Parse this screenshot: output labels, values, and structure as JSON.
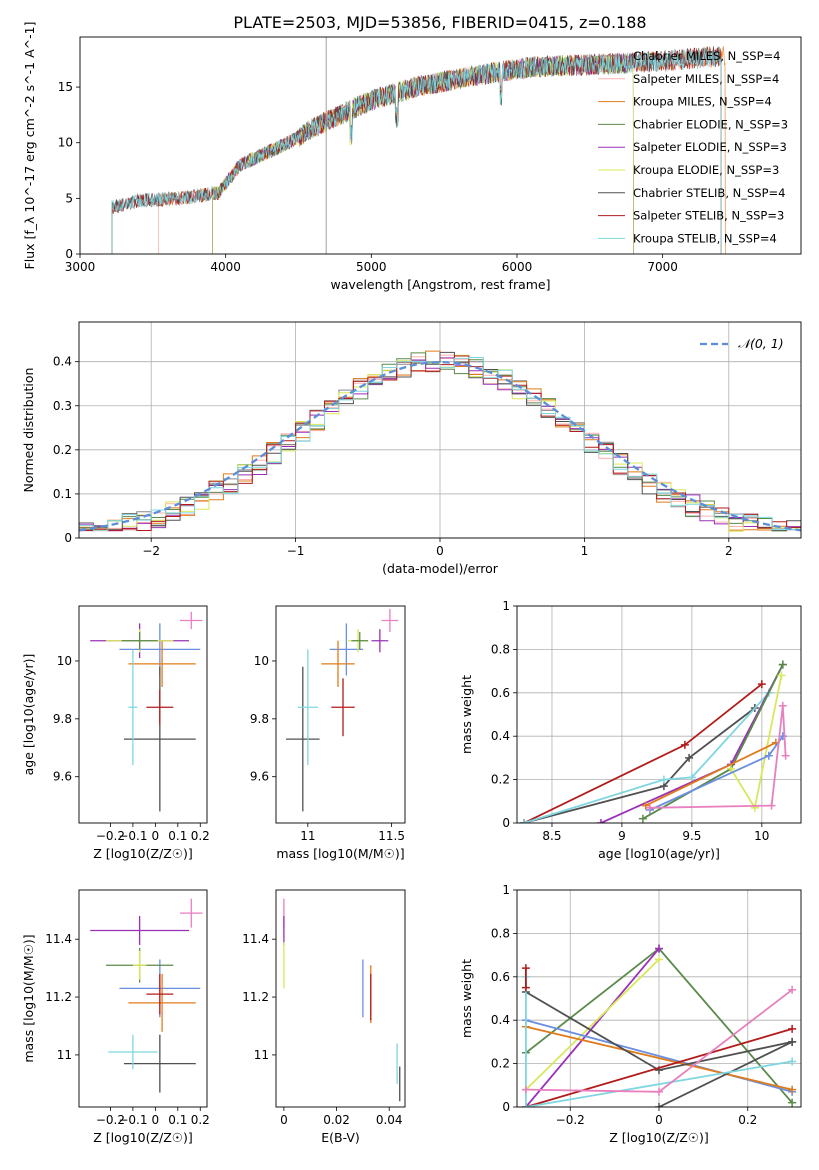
{
  "figure_title": "PLATE=2503, MJD=53856, FIBERID=0415, z=0.188",
  "colors": {
    "chabrier_miles": "#888888",
    "salpeter_miles": "#ffb0b0",
    "kroupa_miles": "#e07b1a",
    "chabrier_elodie": "#5a8a4a",
    "salpeter_elodie": "#9b30b8",
    "kroupa_elodie": "#d8e85a",
    "chabrier_stelib": "#505050",
    "salpeter_stelib": "#b31b1b",
    "kroupa_stelib": "#7fd6e0",
    "normal": "#5b8fd9",
    "pink": "#e87fbf",
    "blue": "#6a8ee0"
  },
  "chart_data": [
    {
      "type": "line",
      "panel": "spectrum",
      "xlabel": "wavelength [Angstrom, rest frame]",
      "ylabel": "Flux [f_λ 10^-17 erg cm^-2 s^-1 A^-1]",
      "xlim": [
        3000,
        7950
      ],
      "ylim": [
        0,
        19.5
      ],
      "xticks": [
        3000,
        4000,
        5000,
        6000,
        7000
      ],
      "yticks": [
        0,
        5,
        10,
        15
      ],
      "legend_placement": "right",
      "series": [
        {
          "name": "Chabrier MILES, N_SSP=4"
        },
        {
          "name": "Salpeter MILES, N_SSP=4"
        },
        {
          "name": "Kroupa MILES, N_SSP=4"
        },
        {
          "name": "Chabrier ELODIE, N_SSP=3"
        },
        {
          "name": "Salpeter ELODIE, N_SSP=3"
        },
        {
          "name": "Kroupa ELODIE, N_SSP=3"
        },
        {
          "name": "Chabrier STELIB, N_SSP=4"
        },
        {
          "name": "Salpeter STELIB, N_SSP=3"
        },
        {
          "name": "Kroupa STELIB, N_SSP=4"
        }
      ],
      "continuum": {
        "x": [
          3220,
          3400,
          3700,
          3950,
          4100,
          4400,
          4700,
          5000,
          5300,
          5700,
          6100,
          6500,
          6800,
          7100,
          7400
        ],
        "y": [
          4.2,
          4.8,
          5.0,
          5.5,
          8.0,
          9.8,
          12.0,
          13.8,
          15.0,
          16.0,
          16.8,
          17.0,
          17.2,
          17.4,
          17.8
        ]
      }
    },
    {
      "type": "line",
      "panel": "residual-histogram",
      "xlabel": "(data-model)/error",
      "ylabel": "Normed distribution",
      "xlim": [
        -2.5,
        2.5
      ],
      "ylim": [
        0,
        0.49
      ],
      "xticks": [
        -2,
        -1,
        0,
        1,
        2
      ],
      "yticks": [
        0.0,
        0.1,
        0.2,
        0.3,
        0.4
      ],
      "legend": "𝒩(0, 1)",
      "legend_placement": "top-right",
      "grid": true
    },
    {
      "type": "scatter",
      "panel": "age-vs-Z",
      "xlabel": "Z [log10(Z/Z☉)]",
      "ylabel": "age  [log10(age/yr)]",
      "xlim": [
        -0.34,
        0.23
      ],
      "ylim": [
        9.44,
        10.19
      ],
      "xticks": [
        -0.2,
        -0.1,
        0.0,
        0.1,
        0.2
      ],
      "yticks": [
        9.6,
        9.8,
        10.0
      ],
      "points": [
        {
          "x": 0.02,
          "y": 10.04,
          "xerr": 0.18,
          "yerr": 0.09,
          "color": "#6a8ee0"
        },
        {
          "x": 0.03,
          "y": 9.99,
          "xerr": 0.15,
          "yerr": 0.08,
          "color": "#e07b1a"
        },
        {
          "x": -0.07,
          "y": 10.07,
          "xerr": 0.22,
          "yerr": 0.06,
          "color": "#9b30b8"
        },
        {
          "x": -0.07,
          "y": 10.07,
          "xerr": 0.15,
          "yerr": 0.04,
          "color": "#d8e85a"
        },
        {
          "x": -0.07,
          "y": 10.07,
          "xerr": 0.08,
          "yerr": 0.03,
          "color": "#5a8a4a"
        },
        {
          "x": 0.02,
          "y": 9.73,
          "xerr": 0.16,
          "yerr": 0.25,
          "color": "#505050"
        },
        {
          "x": 0.02,
          "y": 9.84,
          "xerr": 0.06,
          "yerr": 0.06,
          "color": "#b31b1b"
        },
        {
          "x": -0.1,
          "y": 9.84,
          "xerr": 0.02,
          "yerr": 0.2,
          "color": "#7fd6e0"
        },
        {
          "x": 0.16,
          "y": 10.14,
          "xerr": 0.05,
          "yerr": 0.03,
          "color": "#e87fbf"
        }
      ]
    },
    {
      "type": "scatter",
      "panel": "age-vs-mass",
      "xlabel": "mass [log10(M/M☉)]",
      "ylabel": "",
      "xlim": [
        10.81,
        11.58
      ],
      "ylim": [
        9.44,
        10.19
      ],
      "xticks": [
        11.0,
        11.5
      ],
      "yticks": [
        9.6,
        9.8,
        10.0
      ],
      "points": [
        {
          "x": 11.23,
          "y": 10.04,
          "xerr": 0.1,
          "yerr": 0.09,
          "color": "#6a8ee0"
        },
        {
          "x": 11.18,
          "y": 9.99,
          "xerr": 0.1,
          "yerr": 0.08,
          "color": "#e07b1a"
        },
        {
          "x": 11.43,
          "y": 10.07,
          "xerr": 0.05,
          "yerr": 0.04,
          "color": "#9b30b8"
        },
        {
          "x": 11.3,
          "y": 10.07,
          "xerr": 0.06,
          "yerr": 0.04,
          "color": "#d8e85a"
        },
        {
          "x": 11.31,
          "y": 10.07,
          "xerr": 0.05,
          "yerr": 0.03,
          "color": "#5a8a4a"
        },
        {
          "x": 10.97,
          "y": 9.73,
          "xerr": 0.1,
          "yerr": 0.25,
          "color": "#505050"
        },
        {
          "x": 11.21,
          "y": 9.84,
          "xerr": 0.07,
          "yerr": 0.1,
          "color": "#b31b1b"
        },
        {
          "x": 11.0,
          "y": 9.84,
          "xerr": 0.06,
          "yerr": 0.2,
          "color": "#7fd6e0"
        },
        {
          "x": 11.49,
          "y": 10.14,
          "xerr": 0.05,
          "yerr": 0.04,
          "color": "#e87fbf"
        }
      ]
    },
    {
      "type": "line",
      "panel": "massweight-vs-age",
      "xlabel": "age  [log10(age/yr)]",
      "ylabel": "mass weight",
      "xlim": [
        8.25,
        10.28
      ],
      "ylim": [
        0.0,
        1.0
      ],
      "xticks": [
        8.5,
        9.0,
        9.5,
        10.0
      ],
      "yticks": [
        0.0,
        0.2,
        0.4,
        0.6,
        0.8,
        1.0
      ],
      "grid": true,
      "series": [
        {
          "color": "#b31b1b",
          "x": [
            8.3,
            9.45,
            10.0
          ],
          "y": [
            0.0,
            0.36,
            0.64
          ]
        },
        {
          "color": "#505050",
          "x": [
            8.3,
            9.3,
            9.48,
            9.95
          ],
          "y": [
            0.0,
            0.17,
            0.3,
            0.53
          ]
        },
        {
          "color": "#7fd6e0",
          "x": [
            8.3,
            9.3,
            9.5,
            10.05
          ],
          "y": [
            0.0,
            0.2,
            0.21,
            0.6
          ]
        },
        {
          "color": "#9b30b8",
          "x": [
            8.85,
            9.78,
            10.15
          ],
          "y": [
            0.0,
            0.27,
            0.73
          ]
        },
        {
          "color": "#5a8a4a",
          "x": [
            9.15,
            9.78,
            10.15
          ],
          "y": [
            0.02,
            0.25,
            0.73
          ]
        },
        {
          "color": "#d8e85a",
          "x": [
            9.78,
            9.95,
            10.14
          ],
          "y": [
            0.25,
            0.07,
            0.68
          ]
        },
        {
          "color": "#e07b1a",
          "x": [
            9.17,
            10.1
          ],
          "y": [
            0.08,
            0.37
          ]
        },
        {
          "color": "#6a8ee0",
          "x": [
            9.2,
            10.05,
            10.15
          ],
          "y": [
            0.06,
            0.31,
            0.4
          ]
        },
        {
          "color": "#e87fbf",
          "x": [
            9.2,
            10.07,
            10.15,
            10.17
          ],
          "y": [
            0.07,
            0.08,
            0.54,
            0.31
          ]
        }
      ]
    },
    {
      "type": "scatter",
      "panel": "mass-vs-Z",
      "xlabel": "Z [log10(Z/Z☉)]",
      "ylabel": "mass [log10(M/M☉)]",
      "xlim": [
        -0.34,
        0.23
      ],
      "ylim": [
        10.82,
        11.57
      ],
      "xticks": [
        -0.2,
        -0.1,
        0.0,
        0.1,
        0.2
      ],
      "yticks": [
        11.0,
        11.2,
        11.4
      ],
      "points": [
        {
          "x": 0.02,
          "y": 11.23,
          "xerr": 0.18,
          "yerr": 0.1,
          "color": "#6a8ee0"
        },
        {
          "x": 0.03,
          "y": 11.18,
          "xerr": 0.15,
          "yerr": 0.1,
          "color": "#e07b1a"
        },
        {
          "x": -0.07,
          "y": 11.43,
          "xerr": 0.22,
          "yerr": 0.05,
          "color": "#9b30b8"
        },
        {
          "x": -0.07,
          "y": 11.31,
          "xerr": 0.15,
          "yerr": 0.06,
          "color": "#5a8a4a"
        },
        {
          "x": -0.07,
          "y": 11.31,
          "xerr": 0.03,
          "yerr": 0.05,
          "color": "#d8e85a"
        },
        {
          "x": 0.02,
          "y": 10.97,
          "xerr": 0.16,
          "yerr": 0.1,
          "color": "#505050"
        },
        {
          "x": 0.02,
          "y": 11.21,
          "xerr": 0.06,
          "yerr": 0.07,
          "color": "#b31b1b"
        },
        {
          "x": -0.1,
          "y": 11.01,
          "xerr": 0.11,
          "yerr": 0.06,
          "color": "#7fd6e0"
        },
        {
          "x": 0.16,
          "y": 11.49,
          "xerr": 0.05,
          "yerr": 0.05,
          "color": "#e87fbf"
        }
      ]
    },
    {
      "type": "scatter",
      "panel": "mass-vs-EBV",
      "xlabel": "E(B-V)",
      "ylabel": "",
      "xlim": [
        -0.003,
        0.046
      ],
      "ylim": [
        10.82,
        11.57
      ],
      "xticks": [
        0.0,
        0.02,
        0.04
      ],
      "yticks": [
        11.0,
        11.2,
        11.4
      ],
      "points": [
        {
          "x": 0.0,
          "y": 11.49,
          "yerr": 0.05,
          "color": "#e87fbf"
        },
        {
          "x": 0.0,
          "y": 11.43,
          "yerr": 0.05,
          "color": "#9b30b8"
        },
        {
          "x": 0.0,
          "y": 11.31,
          "yerr": 0.08,
          "color": "#d8e85a"
        },
        {
          "x": 0.03,
          "y": 11.23,
          "yerr": 0.1,
          "color": "#6a8ee0"
        },
        {
          "x": 0.033,
          "y": 11.21,
          "yerr": 0.1,
          "color": "#e07b1a"
        },
        {
          "x": 0.033,
          "y": 11.2,
          "yerr": 0.08,
          "color": "#b31b1b"
        },
        {
          "x": 0.043,
          "y": 10.97,
          "yerr": 0.07,
          "color": "#7fd6e0"
        },
        {
          "x": 0.044,
          "y": 10.9,
          "yerr": 0.06,
          "color": "#505050"
        }
      ]
    },
    {
      "type": "line",
      "panel": "massweight-vs-Z",
      "xlabel": "Z [log10(Z/Z☉)]",
      "ylabel": "mass weight",
      "xlim": [
        -0.32,
        0.32
      ],
      "ylim": [
        0.0,
        1.0
      ],
      "xticks": [
        -0.2,
        0.0,
        0.2
      ],
      "yticks": [
        0.0,
        0.2,
        0.4,
        0.6,
        0.8,
        1.0
      ],
      "grid": true,
      "series": [
        {
          "color": "#5a8a4a",
          "x": [
            -0.3,
            0.0,
            0.3
          ],
          "y": [
            0.25,
            0.73,
            0.02
          ]
        },
        {
          "color": "#9b30b8",
          "x": [
            -0.3,
            0.0
          ],
          "y": [
            0.0,
            0.73
          ]
        },
        {
          "color": "#d8e85a",
          "x": [
            -0.3,
            0.0
          ],
          "y": [
            0.08,
            0.68
          ]
        },
        {
          "color": "#6a8ee0",
          "x": [
            -0.3,
            0.3
          ],
          "y": [
            0.4,
            0.07
          ]
        },
        {
          "color": "#e07b1a",
          "x": [
            -0.3,
            0.3
          ],
          "y": [
            0.37,
            0.08
          ]
        },
        {
          "color": "#505050",
          "x": [
            -0.3,
            0.0,
            0.3
          ],
          "y": [
            0.53,
            0.17,
            0.3
          ]
        },
        {
          "color": "#505050",
          "x": [
            0.0,
            0.3
          ],
          "y": [
            0.0,
            0.3
          ]
        },
        {
          "color": "#b31b1b",
          "x": [
            -0.3,
            0.3
          ],
          "y": [
            0.0,
            0.36
          ]
        },
        {
          "color": "#7fd6e0",
          "x": [
            -0.3,
            0.3
          ],
          "y": [
            0.0,
            0.21
          ]
        },
        {
          "color": "#7fd6e0",
          "x": [
            -0.3,
            -0.3
          ],
          "y": [
            0.0,
            0.6
          ]
        },
        {
          "color": "#e87fbf",
          "x": [
            -0.3,
            0.0,
            0.3
          ],
          "y": [
            0.08,
            0.07,
            0.54
          ]
        },
        {
          "color": "#b31b1b",
          "x": [
            -0.3,
            -0.3
          ],
          "y": [
            0.55,
            0.64
          ]
        }
      ]
    }
  ]
}
